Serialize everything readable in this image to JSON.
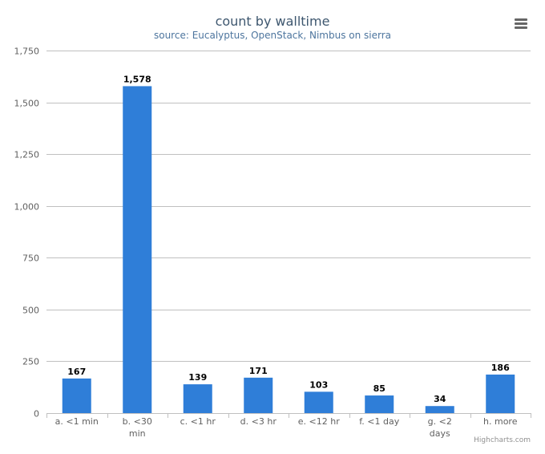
{
  "chart": {
    "title": "count by walltime",
    "subtitle": "source: Eucalyptus, OpenStack, Nimbus on sierra",
    "menu_icon": "hamburger-menu-icon",
    "credits": "Highcharts.com"
  },
  "colors": {
    "bar": "#2F7ED8",
    "grid": "#C0C0C0",
    "axis_text": "#606060",
    "title": "#3E576F",
    "subtitle": "#4D759E"
  },
  "chart_data": {
    "type": "bar",
    "title": "count by walltime",
    "subtitle": "source: Eucalyptus, OpenStack, Nimbus on sierra",
    "xlabel": "",
    "ylabel": "",
    "categories": [
      "a. <1 min",
      "b. <30 min",
      "c. <1 hr",
      "d. <3 hr",
      "e. <12 hr",
      "f. <1 day",
      "g. <2 days",
      "h. more"
    ],
    "category_lines": [
      [
        "a. <1 min"
      ],
      [
        "b. <30",
        "min"
      ],
      [
        "c. <1 hr"
      ],
      [
        "d. <3 hr"
      ],
      [
        "e. <12 hr"
      ],
      [
        "f. <1 day"
      ],
      [
        "g. <2",
        "days"
      ],
      [
        "h. more"
      ]
    ],
    "values": [
      167,
      1578,
      139,
      171,
      103,
      85,
      34,
      186
    ],
    "value_labels": [
      "167",
      "1,578",
      "139",
      "171",
      "103",
      "85",
      "34",
      "186"
    ],
    "ylim": [
      0,
      1750
    ],
    "yticks": [
      0,
      250,
      500,
      750,
      1000,
      1250,
      1500,
      1750
    ],
    "ytick_labels": [
      "0",
      "250",
      "500",
      "750",
      "1,000",
      "1,250",
      "1,500",
      "1,750"
    ],
    "grid": true,
    "legend": "none"
  }
}
